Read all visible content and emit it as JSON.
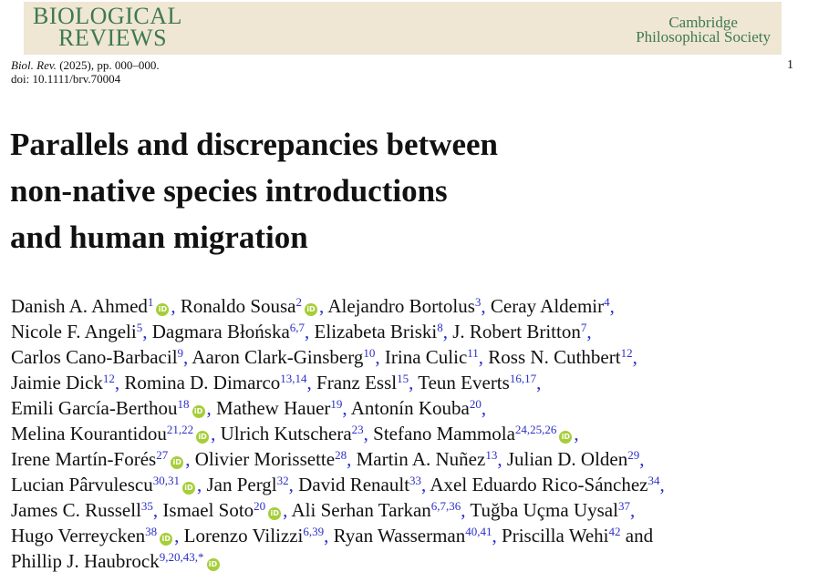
{
  "journal": {
    "brand_line1": "BIOLOGICAL",
    "brand_line2": "REVIEWS",
    "society_line1": "Cambridge",
    "society_line2": "Philosophical Society",
    "citation_journal": "Biol. Rev.",
    "citation_rest": " (2025), pp. 000–000.",
    "doi": "doi: 10.1111/brv.70004",
    "page_number": "1"
  },
  "title_lines": [
    "Parallels and discrepancies between",
    "non-native species introductions",
    "and human migration"
  ],
  "icons": {
    "orcid": "orcid-icon"
  },
  "colors": {
    "brand": "#3f7a4c",
    "header_bg": "#efe6d4",
    "link": "#2b2fc7",
    "orcid": "#a6ce39"
  },
  "author_lines": [
    [
      {
        "name": "Danish A. Ahmed",
        "sup": "1",
        "orcid": true,
        "sep": ","
      },
      {
        "name": "Ronaldo Sousa",
        "sup": "2",
        "orcid": true,
        "sep": ","
      },
      {
        "name": "Alejandro Bortolus",
        "sup": "3",
        "orcid": false,
        "sep": ","
      },
      {
        "name": "Ceray Aldemir",
        "sup": "4",
        "orcid": false,
        "sep": ","
      }
    ],
    [
      {
        "name": "Nicole F. Angeli",
        "sup": "5",
        "orcid": false,
        "sep": ","
      },
      {
        "name": "Dagmara Błońska",
        "sup": "6,7",
        "orcid": false,
        "sep": ","
      },
      {
        "name": "Elizabeta Briski",
        "sup": "8",
        "orcid": false,
        "sep": ","
      },
      {
        "name": "J. Robert Britton",
        "sup": "7",
        "orcid": false,
        "sep": ","
      }
    ],
    [
      {
        "name": "Carlos Cano-Barbacil",
        "sup": "9",
        "orcid": false,
        "sep": ","
      },
      {
        "name": "Aaron Clark-Ginsberg",
        "sup": "10",
        "orcid": false,
        "sep": ","
      },
      {
        "name": "Irina Culic",
        "sup": "11",
        "orcid": false,
        "sep": ","
      },
      {
        "name": "Ross N. Cuthbert",
        "sup": "12",
        "orcid": false,
        "sep": ","
      }
    ],
    [
      {
        "name": "Jaimie Dick",
        "sup": "12",
        "orcid": false,
        "sep": ","
      },
      {
        "name": "Romina D. Dimarco",
        "sup": "13,14",
        "orcid": false,
        "sep": ","
      },
      {
        "name": "Franz Essl",
        "sup": "15",
        "orcid": false,
        "sep": ","
      },
      {
        "name": "Teun Everts",
        "sup": "16,17",
        "orcid": false,
        "sep": ","
      }
    ],
    [
      {
        "name": "Emili García-Berthou",
        "sup": "18",
        "orcid": true,
        "sep": ","
      },
      {
        "name": "Mathew Hauer",
        "sup": "19",
        "orcid": false,
        "sep": ","
      },
      {
        "name": "Antonín Kouba",
        "sup": "20",
        "orcid": false,
        "sep": ","
      }
    ],
    [
      {
        "name": "Melina Kourantidou",
        "sup": "21,22",
        "orcid": true,
        "sep": ","
      },
      {
        "name": "Ulrich Kutschera",
        "sup": "23",
        "orcid": false,
        "sep": ","
      },
      {
        "name": "Stefano Mammola",
        "sup": "24,25,26",
        "orcid": true,
        "sep": ","
      }
    ],
    [
      {
        "name": "Irene Martín-Forés",
        "sup": "27",
        "orcid": true,
        "sep": ","
      },
      {
        "name": "Olivier Morissette",
        "sup": "28",
        "orcid": false,
        "sep": ","
      },
      {
        "name": "Martin A. Nuñez",
        "sup": "13",
        "orcid": false,
        "sep": ","
      },
      {
        "name": "Julian D. Olden",
        "sup": "29",
        "orcid": false,
        "sep": ","
      }
    ],
    [
      {
        "name": "Lucian Pârvulescu",
        "sup": "30,31",
        "orcid": true,
        "sep": ","
      },
      {
        "name": "Jan Pergl",
        "sup": "32",
        "orcid": false,
        "sep": ","
      },
      {
        "name": "David Renault",
        "sup": "33",
        "orcid": false,
        "sep": ","
      },
      {
        "name": "Axel Eduardo Rico-Sánchez",
        "sup": "34",
        "orcid": false,
        "sep": ","
      }
    ],
    [
      {
        "name": "James C. Russell",
        "sup": "35",
        "orcid": false,
        "sep": ","
      },
      {
        "name": "Ismael Soto",
        "sup": "20",
        "orcid": true,
        "sep": ","
      },
      {
        "name": "Ali Serhan Tarkan",
        "sup": "6,7,36",
        "orcid": false,
        "sep": ","
      },
      {
        "name": "Tuğba Uçma Uysal",
        "sup": "37",
        "orcid": false,
        "sep": ","
      }
    ],
    [
      {
        "name": "Hugo Verreycken",
        "sup": "38",
        "orcid": true,
        "sep": ","
      },
      {
        "name": "Lorenzo Vilizzi",
        "sup": "6,39",
        "orcid": false,
        "sep": ","
      },
      {
        "name": "Ryan Wasserman",
        "sup": "40,41",
        "orcid": false,
        "sep": ","
      },
      {
        "name": "Priscilla Wehi",
        "sup": "42",
        "orcid": false,
        "sep": " and"
      }
    ],
    [
      {
        "name": "Phillip J. Haubrock",
        "sup": "9,20,43,*",
        "orcid": true,
        "sep": ""
      }
    ]
  ]
}
